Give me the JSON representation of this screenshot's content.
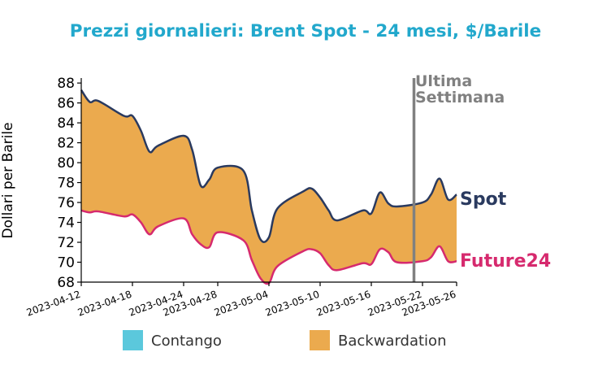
{
  "chart_data": {
    "type": "area",
    "title": "Prezzi giornalieri: Brent Spot - 24 mesi, $/Barile",
    "ylabel": "Dollari per Barile",
    "xlabel": "",
    "ylim": [
      68,
      88.5
    ],
    "yticks": [
      68,
      70,
      72,
      74,
      76,
      78,
      80,
      82,
      84,
      86,
      88
    ],
    "xlim": [
      "2023-04-12",
      "2023-05-26"
    ],
    "xticks": [
      "2023-04-12",
      "2023-04-18",
      "2023-04-24",
      "2023-04-28",
      "2023-05-04",
      "2023-05-10",
      "2023-05-16",
      "2023-05-22",
      "2023-05-26"
    ],
    "x": [
      "2023-04-12",
      "2023-04-13",
      "2023-04-14",
      "2023-04-17",
      "2023-04-18",
      "2023-04-19",
      "2023-04-20",
      "2023-04-21",
      "2023-04-24",
      "2023-04-25",
      "2023-04-26",
      "2023-04-27",
      "2023-04-28",
      "2023-05-01",
      "2023-05-02",
      "2023-05-03",
      "2023-05-04",
      "2023-05-05",
      "2023-05-08",
      "2023-05-09",
      "2023-05-10",
      "2023-05-11",
      "2023-05-12",
      "2023-05-15",
      "2023-05-16",
      "2023-05-17",
      "2023-05-18",
      "2023-05-19",
      "2023-05-22",
      "2023-05-23",
      "2023-05-24",
      "2023-05-25",
      "2023-05-26"
    ],
    "series": [
      {
        "name": "Spot",
        "values": [
          87.3,
          86.1,
          86.2,
          84.7,
          84.7,
          83.2,
          81.1,
          81.7,
          82.7,
          81.3,
          77.7,
          78.3,
          79.5,
          79.2,
          75.2,
          72.3,
          72.5,
          75.4,
          77.1,
          77.4,
          76.5,
          75.2,
          74.2,
          75.2,
          74.9,
          77.0,
          75.9,
          75.6,
          76.0,
          76.8,
          78.4,
          76.3,
          76.8
        ]
      },
      {
        "name": "Future24",
        "values": [
          75.2,
          75.0,
          75.1,
          74.6,
          74.8,
          74.0,
          72.8,
          73.6,
          74.4,
          72.8,
          71.8,
          71.5,
          73.0,
          72.2,
          70.2,
          68.4,
          67.9,
          69.6,
          71.1,
          71.3,
          70.9,
          69.7,
          69.2,
          69.9,
          69.8,
          71.3,
          71.0,
          70.0,
          70.1,
          70.5,
          71.6,
          70.1,
          70.1
        ]
      }
    ],
    "legend": {
      "placement": "bottom",
      "items": [
        "Contango",
        "Backwardation"
      ]
    },
    "annotation": {
      "text_line1": "Ultima",
      "text_line2": "Settimana",
      "x": "2023-05-21"
    },
    "grid": false,
    "colors": {
      "title": "#22a8cc",
      "spot": "#2a3a5f",
      "future": "#d62a6e",
      "backwardation": "#ebaa4e",
      "contango": "#5bc8dc",
      "vline": "#808080",
      "annotation": "#808080"
    }
  }
}
